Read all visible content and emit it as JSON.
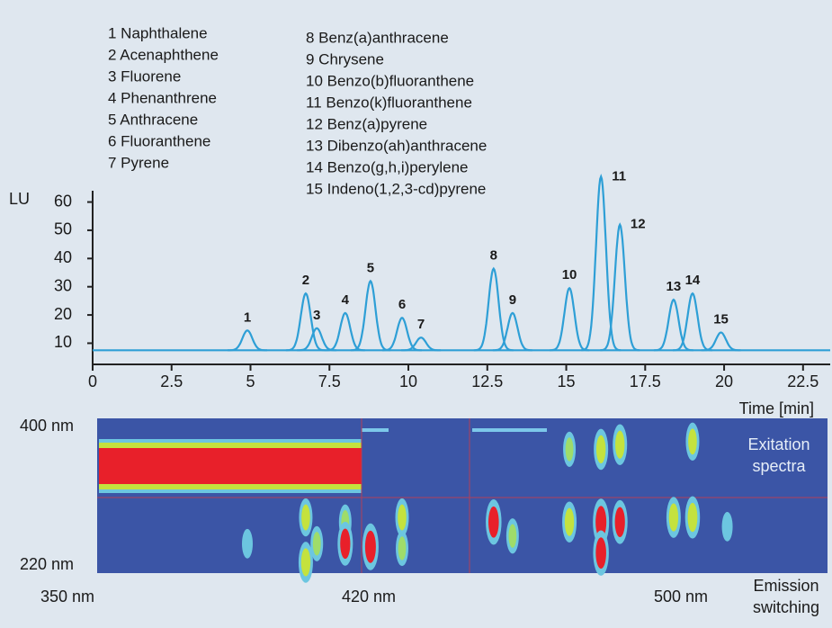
{
  "chart_data": [
    {
      "type": "peaks",
      "compounds": [
        "1 Naphthalene",
        "2 Acenaphthene",
        "3 Fluorene",
        "4 Phenanthrene",
        "5 Anthracene",
        "6 Fluoranthene",
        "7 Pyrene",
        "8 Benz(a)anthracene",
        "9 Chrysene",
        "10 Benzo(b)fluoranthene",
        "11 Benzo(k)fluoranthene",
        "12 Benz(a)pyrene",
        "13 Dibenzo(ah)anthracene",
        "14 Benzo(g,h,i)perylene",
        "15 Indeno(1,2,3-cd)pyrene"
      ],
      "y_label": "LU",
      "x_label": "Time [min]",
      "xlim": [
        0,
        23.36
      ],
      "ylim": [
        2.5,
        64
      ],
      "xticks": [
        0,
        2.5,
        5,
        7.5,
        10,
        12.5,
        15,
        17.5,
        20,
        22.5
      ],
      "yticks": [
        10,
        20,
        30,
        40,
        50,
        60
      ],
      "baseline": 7.5,
      "color": "#2e9fd6",
      "peak_labels": [
        "1",
        "2",
        "3",
        "4",
        "5",
        "6",
        "7",
        "8",
        "9",
        "10",
        "11",
        "12",
        "13",
        "14",
        "15"
      ],
      "x": [
        4.9,
        6.75,
        7.1,
        8.0,
        8.8,
        9.8,
        10.4,
        12.7,
        13.3,
        15.1,
        16.1,
        16.7,
        18.4,
        19.0,
        19.9
      ],
      "values": [
        14.5,
        27.6,
        15.3,
        20.7,
        32,
        19,
        12,
        36.4,
        20.7,
        29.5,
        69,
        52,
        25.4,
        27.6,
        13.8
      ]
    },
    {
      "type": "heatmap",
      "xlim": [
        0,
        23.36
      ],
      "ylim": [
        0,
        1
      ],
      "y_labels": [
        "400 nm",
        "220 nm"
      ],
      "x_labels": [
        "350 nm",
        "420 nm",
        "500 nm"
      ],
      "x_title": [
        "Emission",
        "switching"
      ],
      "annotation": [
        "Exitation",
        "spectra"
      ],
      "spots": {
        "x": [
          4.9,
          6.75,
          6.75,
          7.1,
          8.0,
          8.0,
          8.8,
          9.8,
          9.8,
          12.7,
          13.3,
          15.1,
          15.1,
          16.1,
          16.1,
          16.1,
          16.7,
          16.7,
          18.4,
          19.0,
          19.0,
          20.1
        ],
        "y": [
          0.19,
          0.36,
          0.07,
          0.19,
          0.33,
          0.19,
          0.17,
          0.36,
          0.16,
          0.33,
          0.24,
          0.8,
          0.33,
          0.8,
          0.33,
          0.13,
          0.83,
          0.33,
          0.36,
          0.85,
          0.36,
          0.3
        ],
        "intensity": [
          0.4,
          0.7,
          0.8,
          0.6,
          0.6,
          0.9,
          1.0,
          0.7,
          0.6,
          0.95,
          0.6,
          0.6,
          0.8,
          0.8,
          1.0,
          0.95,
          0.8,
          0.9,
          0.8,
          0.7,
          0.85,
          0.4
        ]
      }
    }
  ]
}
